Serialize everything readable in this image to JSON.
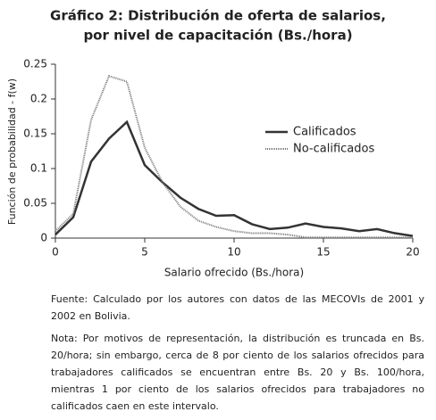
{
  "chart_data": {
    "type": "line",
    "title": "Gráfico 2: Distribución de oferta de salarios,",
    "subtitle": "por nivel de capacitación (Bs./hora)",
    "x_label": "Salario ofrecido (Bs./hora)",
    "y_label": "Función de probabilidad - f(w)",
    "x": [
      0,
      1,
      2,
      3,
      4,
      5,
      6,
      7,
      8,
      9,
      10,
      11,
      12,
      13,
      14,
      15,
      16,
      17,
      18,
      19,
      20
    ],
    "series": [
      {
        "name": "Calificados",
        "color": "#333333",
        "style": "solid",
        "values": [
          0.005,
          0.03,
          0.11,
          0.143,
          0.167,
          0.105,
          0.08,
          0.058,
          0.042,
          0.032,
          0.033,
          0.02,
          0.013,
          0.015,
          0.021,
          0.016,
          0.014,
          0.01,
          0.013,
          0.007,
          0.003
        ]
      },
      {
        "name": "No-calificados",
        "color": "#777777",
        "style": "dotted",
        "values": [
          0.01,
          0.035,
          0.17,
          0.233,
          0.225,
          0.13,
          0.08,
          0.045,
          0.025,
          0.016,
          0.01,
          0.007,
          0.007,
          0.005,
          0.001,
          0.001,
          0.001,
          0.001,
          0.001,
          0.001,
          0.001
        ]
      }
    ],
    "xlim": [
      0,
      20
    ],
    "xticks": [
      0,
      5,
      10,
      15,
      20
    ],
    "ylim": [
      0,
      0.25
    ],
    "yticks": [
      0,
      0.05,
      0.1,
      0.15,
      0.2,
      0.25
    ],
    "legend": "right"
  },
  "notes": {
    "source": "Fuente: Calculado por los autores con datos de las MECOVIs de 2001 y 2002 en Bolivia.",
    "note": "Nota: Por motivos de representación, la distribución es truncada en Bs. 20/hora; sin embargo, cerca de 8 por ciento de los salarios ofrecidos para trabajadores calificados se encuentran entre Bs. 20 y Bs. 100/hora, mientras 1 por ciento de los salarios ofrecidos para trabajadores no calificados caen en este intervalo."
  }
}
